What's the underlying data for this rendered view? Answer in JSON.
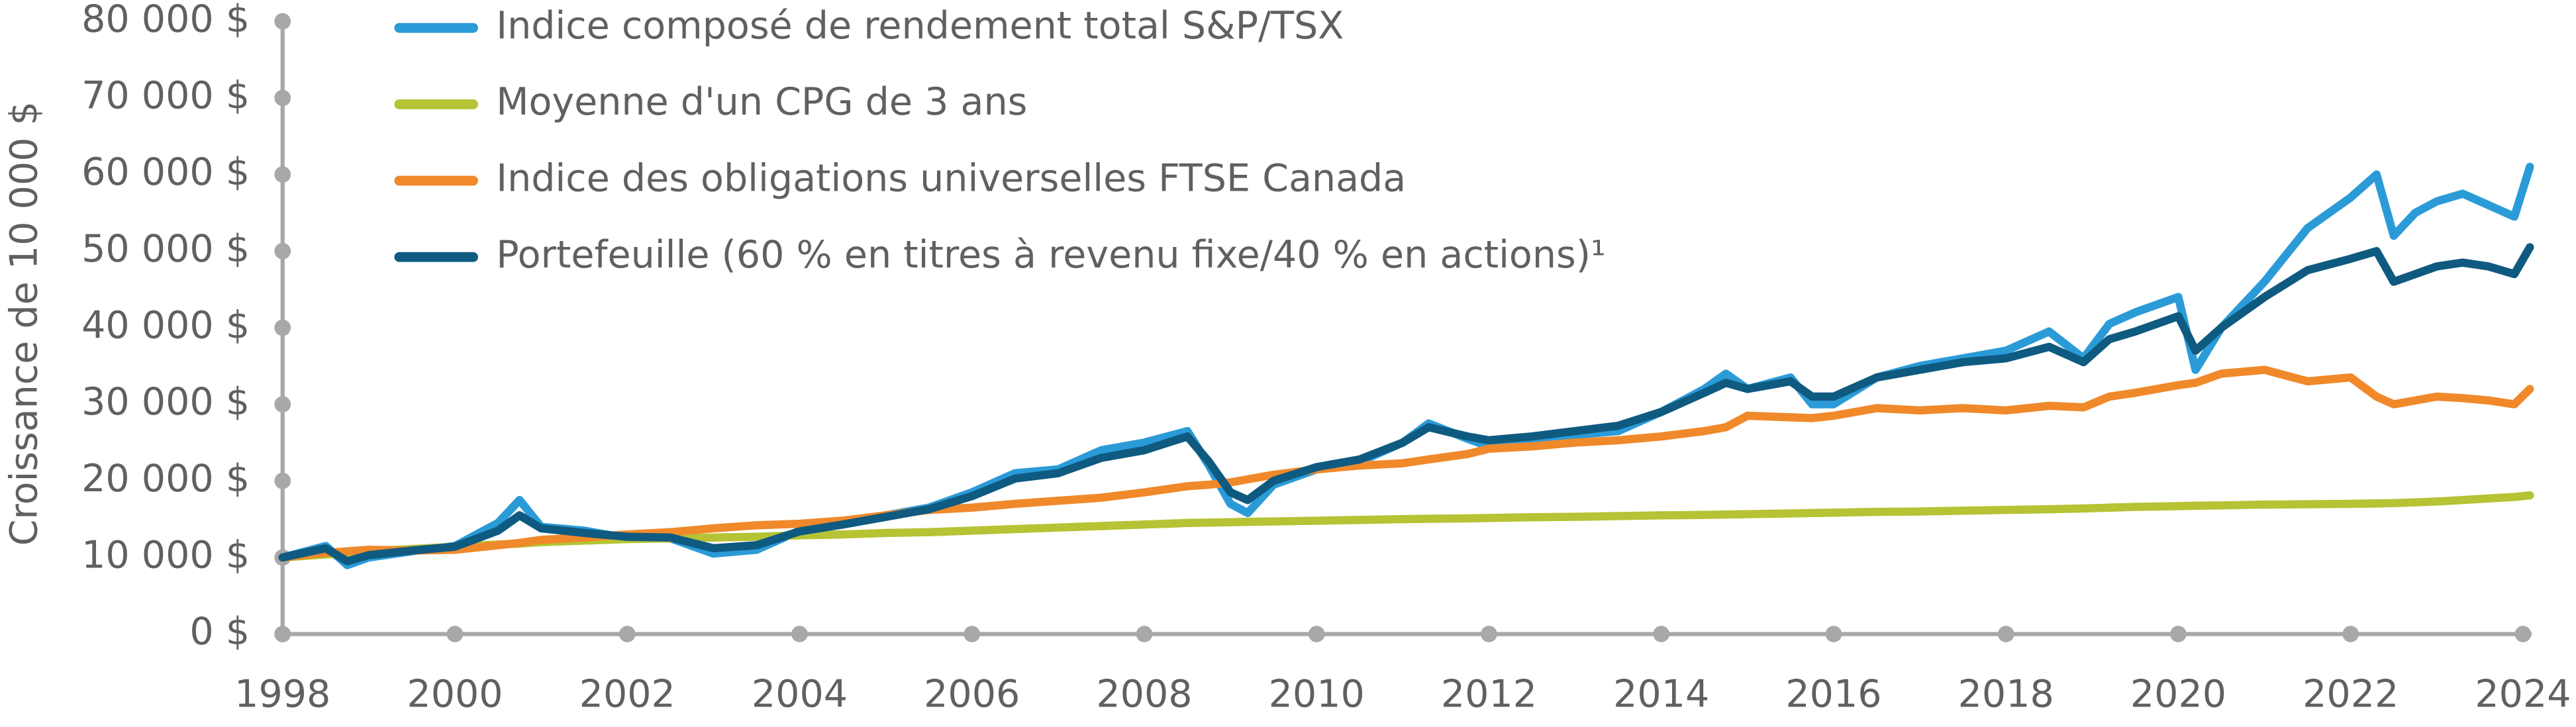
{
  "chart_data": {
    "type": "line",
    "y_label": "Croissance de 10 000 $",
    "x": [
      1998,
      1998.5,
      1998.75,
      1999,
      1999.5,
      2000,
      2000.5,
      2000.75,
      2001,
      2001.5,
      2002,
      2002.5,
      2003,
      2003.5,
      2004,
      2004.5,
      2005,
      2005.5,
      2006,
      2006.5,
      2007,
      2007.5,
      2008,
      2008.5,
      2008.75,
      2009,
      2009.2,
      2009.5,
      2010,
      2010.5,
      2011,
      2011.3,
      2011.75,
      2012,
      2012.5,
      2013,
      2013.5,
      2014,
      2014.5,
      2014.75,
      2015,
      2015.5,
      2015.75,
      2016,
      2016.5,
      2017,
      2017.5,
      2018,
      2018.5,
      2018.9,
      2019.2,
      2019.5,
      2020,
      2020.2,
      2020.5,
      2021,
      2021.5,
      2022,
      2022.3,
      2022.5,
      2022.75,
      2023,
      2023.3,
      2023.6,
      2023.9,
      2024.08
    ],
    "series": [
      {
        "name": "Indice composé de rendement total S&P/TSX",
        "color": "#2b9bd8",
        "values": [
          10000,
          11500,
          9000,
          10000,
          10800,
          11500,
          14500,
          17500,
          14000,
          13500,
          12500,
          12500,
          10500,
          11000,
          13500,
          14500,
          15500,
          16500,
          18500,
          21000,
          21500,
          24000,
          25000,
          26500,
          22000,
          17000,
          15800,
          19500,
          21500,
          22500,
          25000,
          27500,
          25500,
          24500,
          25000,
          26000,
          26500,
          29000,
          32000,
          34000,
          32000,
          33500,
          30000,
          30000,
          33500,
          35000,
          36000,
          37000,
          39500,
          36000,
          40500,
          42000,
          44000,
          34500,
          40000,
          46000,
          53000,
          57000,
          60000,
          52000,
          55000,
          56500,
          57500,
          56000,
          54500,
          61000
        ]
      },
      {
        "name": "Moyenne d'un CPG de 3 ans",
        "color": "#b5c334",
        "values": [
          10000,
          10400,
          10600,
          10800,
          11100,
          11400,
          11700,
          11800,
          12000,
          12200,
          12400,
          12500,
          12600,
          12700,
          12900,
          13000,
          13200,
          13300,
          13500,
          13700,
          13900,
          14100,
          14300,
          14500,
          14550,
          14600,
          14650,
          14700,
          14800,
          14900,
          15000,
          15050,
          15100,
          15150,
          15250,
          15300,
          15400,
          15500,
          15550,
          15600,
          15650,
          15750,
          15800,
          15850,
          15950,
          16000,
          16100,
          16200,
          16300,
          16400,
          16500,
          16600,
          16700,
          16750,
          16800,
          16900,
          16950,
          17000,
          17050,
          17100,
          17200,
          17300,
          17500,
          17700,
          17900,
          18100
        ]
      },
      {
        "name": "Indice des obligations universelles FTSE Canada",
        "color": "#f0892a",
        "values": [
          10000,
          10600,
          10800,
          11000,
          10900,
          11000,
          11600,
          11900,
          12300,
          12600,
          13000,
          13300,
          13800,
          14200,
          14400,
          14800,
          15500,
          16200,
          16500,
          17000,
          17400,
          17800,
          18500,
          19300,
          19500,
          19800,
          20200,
          20800,
          21500,
          22000,
          22300,
          22800,
          23500,
          24200,
          24500,
          25000,
          25300,
          25800,
          26500,
          27000,
          28500,
          28300,
          28200,
          28500,
          29500,
          29200,
          29500,
          29200,
          29800,
          29600,
          31000,
          31500,
          32500,
          32800,
          34000,
          34500,
          33000,
          33500,
          31000,
          30000,
          30500,
          31000,
          30800,
          30500,
          30000,
          32000
        ]
      },
      {
        "name": "Portefeuille (60 % en titres à revenu fixe/40 % en actions)¹",
        "color": "#0f5a80",
        "values": [
          10000,
          11200,
          9500,
          10300,
          10900,
          11400,
          13500,
          15500,
          13800,
          13200,
          12700,
          12600,
          11200,
          11600,
          13400,
          14300,
          15300,
          16300,
          18000,
          20300,
          21000,
          23000,
          24000,
          25800,
          22500,
          18500,
          17500,
          20000,
          21800,
          22800,
          25000,
          27000,
          25800,
          25300,
          25800,
          26500,
          27200,
          29000,
          31500,
          32800,
          32000,
          33000,
          31000,
          31000,
          33500,
          34500,
          35500,
          36000,
          37500,
          35500,
          38500,
          39500,
          41500,
          37000,
          40000,
          44000,
          47500,
          49000,
          50000,
          46000,
          47000,
          48000,
          48500,
          48000,
          47000,
          50500
        ]
      }
    ],
    "xlim": [
      1998,
      2024.1
    ],
    "xticks": [
      1998,
      2000,
      2002,
      2004,
      2006,
      2008,
      2010,
      2012,
      2014,
      2016,
      2018,
      2020,
      2022,
      2024
    ],
    "ylim": [
      0,
      80000
    ],
    "yticks": [
      {
        "value": 0,
        "label": "0 $"
      },
      {
        "value": 10000,
        "label": "10 000 $"
      },
      {
        "value": 20000,
        "label": "20 000 $"
      },
      {
        "value": 30000,
        "label": "30 000 $"
      },
      {
        "value": 40000,
        "label": "40 000 $"
      },
      {
        "value": 50000,
        "label": "50 000 $"
      },
      {
        "value": 60000,
        "label": "60 000 $"
      },
      {
        "value": 70000,
        "label": "70 000 $"
      },
      {
        "value": 80000,
        "label": "80 000 $"
      }
    ]
  }
}
